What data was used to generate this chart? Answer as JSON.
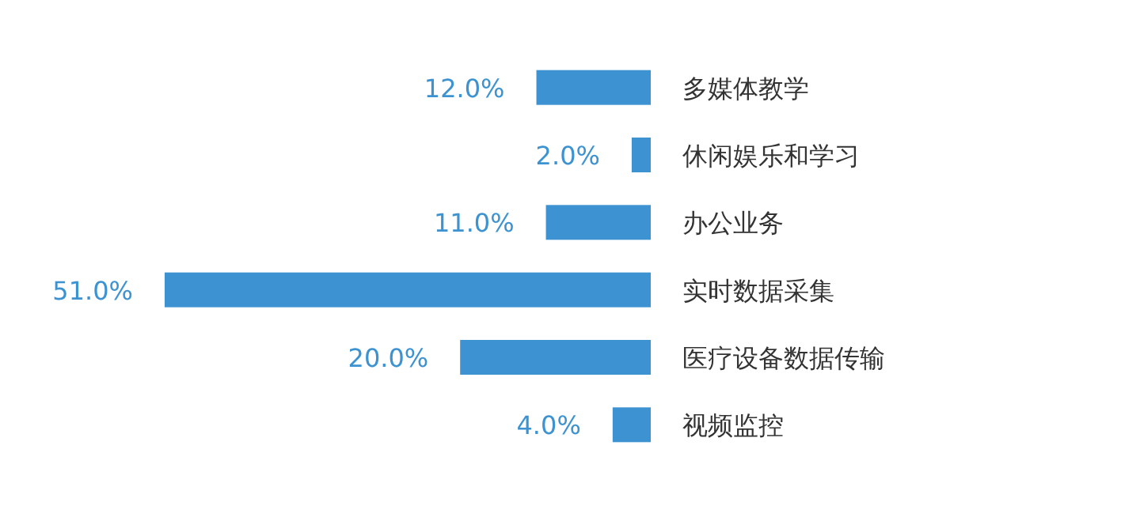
{
  "chart_data": {
    "type": "bar",
    "orientation": "horizontal",
    "categories": [
      "多媒体教学",
      "休闲娱乐和学习",
      "办公业务",
      "实时数据采集",
      "医疗设备数据传输",
      "视频监控"
    ],
    "values": [
      12,
      2,
      11,
      51,
      20,
      4
    ],
    "value_labels": [
      "12.0%",
      "2.0%",
      "11.0%",
      "51.0%",
      "20.0%",
      "4.0%"
    ],
    "color": "#3d93d1"
  }
}
